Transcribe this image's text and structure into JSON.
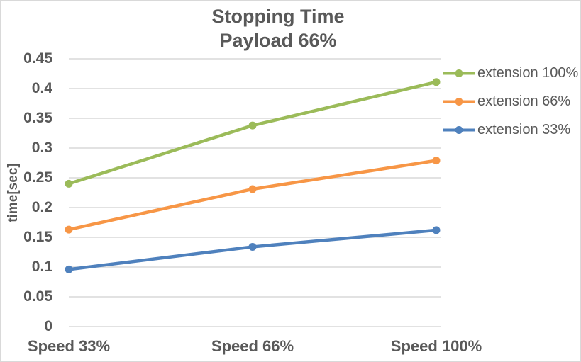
{
  "chart": {
    "background": "#FFFFFF",
    "border_color": "#D9D9D9",
    "gridline_color": "#D9D9D9",
    "text_color": "#595959"
  },
  "chart_data": {
    "type": "line",
    "title": "Stopping Time",
    "subtitle": "Payload 66%",
    "categories": [
      "Speed 33%",
      "Speed 66%",
      "Speed 100%"
    ],
    "series": [
      {
        "name": "extension 100%",
        "color": "#9BBB59",
        "values": [
          0.24,
          0.338,
          0.411
        ]
      },
      {
        "name": "extension 66%",
        "color": "#F79646",
        "values": [
          0.163,
          0.231,
          0.279
        ]
      },
      {
        "name": "extension 33%",
        "color": "#4F81BD",
        "values": [
          0.096,
          0.134,
          0.162
        ]
      }
    ],
    "xlabel": "",
    "ylabel": "time[sec]",
    "ylim": [
      0,
      0.45
    ],
    "ytick_step": 0.05,
    "ytick_labels": [
      "0",
      "0.05",
      "0.1",
      "0.15",
      "0.2",
      "0.25",
      "0.3",
      "0.35",
      "0.4",
      "0.45"
    ],
    "grid": "horizontal-only",
    "legend_position": "right",
    "marker": "circle"
  }
}
